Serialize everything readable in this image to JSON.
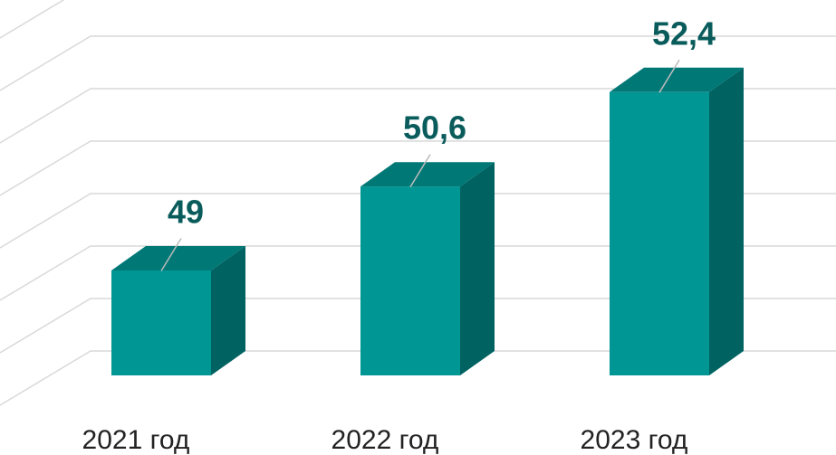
{
  "chart_data": {
    "type": "bar3d",
    "categories": [
      "2021 год",
      "2022 год",
      "2023 год"
    ],
    "values": [
      49,
      50.6,
      52.4
    ],
    "value_labels": [
      "49",
      "50,6",
      "52,4"
    ],
    "color": "#009694",
    "ylim": [
      47,
      54
    ],
    "yticks": [
      47,
      48,
      49,
      50,
      51,
      52,
      53,
      54
    ],
    "grid": true
  }
}
